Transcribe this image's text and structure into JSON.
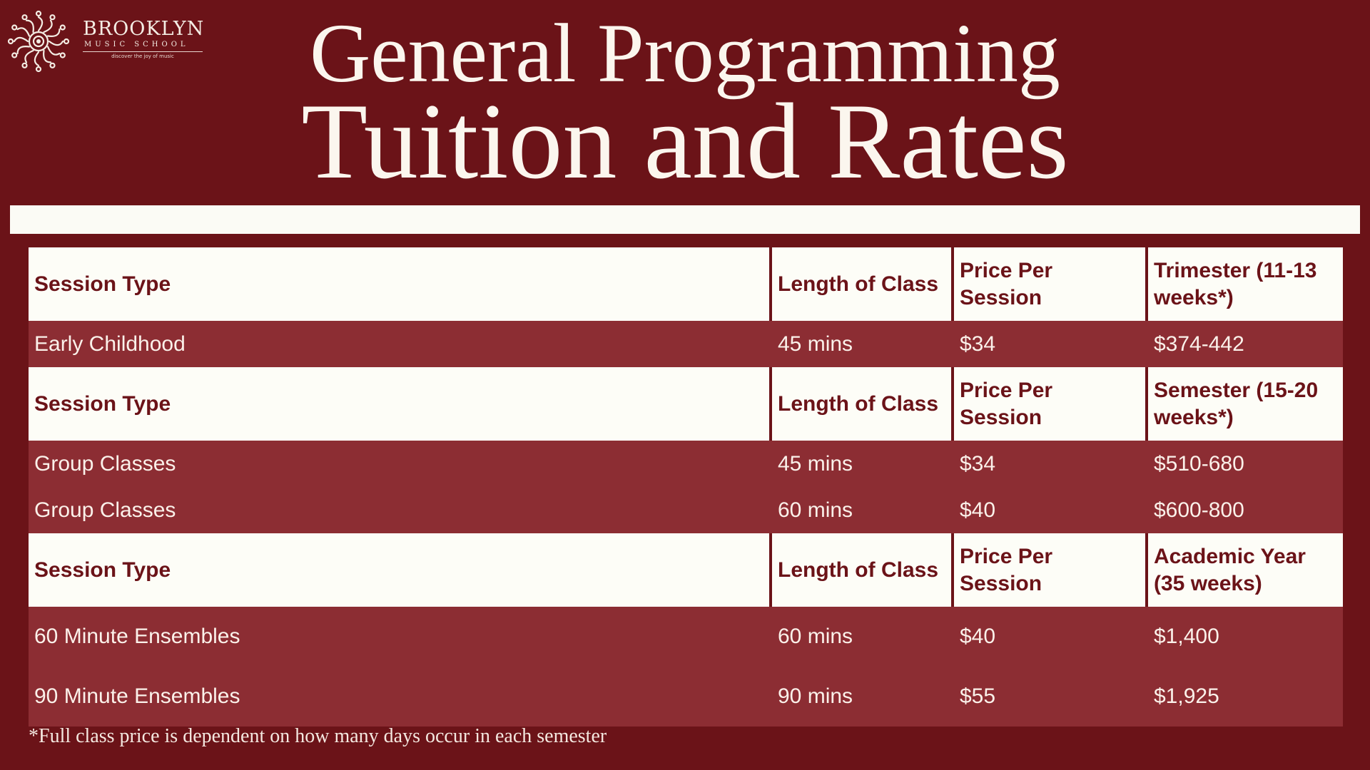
{
  "logo": {
    "name": "BROOKLYN",
    "subtitle": "MUSIC SCHOOL",
    "tagline": "discover the joy of music"
  },
  "heading": {
    "line1": "General Programming",
    "line2": "Tuition and Rates"
  },
  "table": {
    "sections": [
      {
        "header": [
          "Session Type",
          "Length of Class",
          "Price Per Session",
          "Trimester (11-13 weeks*)"
        ],
        "rows": [
          [
            "Early Childhood",
            "45 mins",
            "$34",
            "$374-442"
          ]
        ]
      },
      {
        "header": [
          "Session Type",
          "Length of Class",
          "Price Per Session",
          "Semester (15-20 weeks*)"
        ],
        "rows": [
          [
            "Group Classes",
            "45 mins",
            "$34",
            "$510-680"
          ],
          [
            "Group Classes",
            "60 mins",
            "$40",
            "$600-800"
          ]
        ]
      },
      {
        "header": [
          "Session Type",
          "Length of Class",
          "Price Per Session",
          "Academic Year (35 weeks)"
        ],
        "rows": [
          [
            "60 Minute Ensembles",
            "60 mins",
            "$40",
            "$1,400"
          ],
          [
            "90 Minute Ensembles",
            "90 mins",
            "$55",
            "$1,925"
          ]
        ]
      }
    ]
  },
  "footnote": "*Full class price is dependent on how many days occur in each semester",
  "colors": {
    "background": "#6b1318",
    "row_fill": "#8c2d33",
    "header_fill": "#fdfdf7",
    "text_light": "#fbf6ee"
  }
}
